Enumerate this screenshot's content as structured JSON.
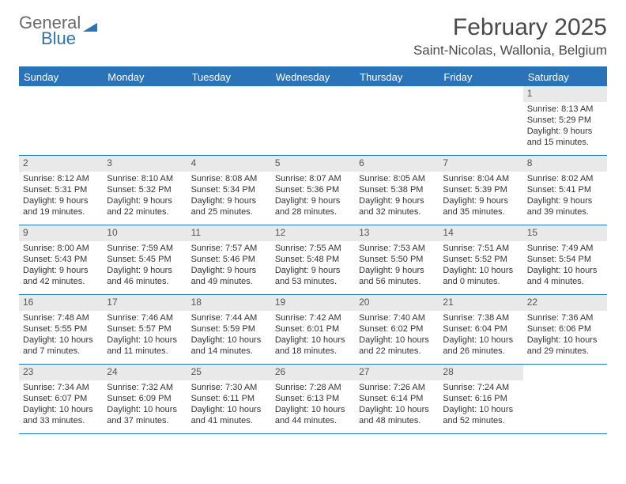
{
  "logo": {
    "word1": "General",
    "word2": "Blue"
  },
  "title": "February 2025",
  "location": "Saint-Nicolas, Wallonia, Belgium",
  "colors": {
    "accent": "#2a73b8",
    "header_bg": "#2a73b8",
    "header_text": "#ffffff",
    "daynum_bg": "#e9e9e9",
    "text": "#333333",
    "logo_gray": "#6b6b6b"
  },
  "day_headers": [
    "Sunday",
    "Monday",
    "Tuesday",
    "Wednesday",
    "Thursday",
    "Friday",
    "Saturday"
  ],
  "weeks": [
    [
      null,
      null,
      null,
      null,
      null,
      null,
      {
        "n": "1",
        "sr": "8:13 AM",
        "ss": "5:29 PM",
        "dl": "9 hours and 15 minutes."
      }
    ],
    [
      {
        "n": "2",
        "sr": "8:12 AM",
        "ss": "5:31 PM",
        "dl": "9 hours and 19 minutes."
      },
      {
        "n": "3",
        "sr": "8:10 AM",
        "ss": "5:32 PM",
        "dl": "9 hours and 22 minutes."
      },
      {
        "n": "4",
        "sr": "8:08 AM",
        "ss": "5:34 PM",
        "dl": "9 hours and 25 minutes."
      },
      {
        "n": "5",
        "sr": "8:07 AM",
        "ss": "5:36 PM",
        "dl": "9 hours and 28 minutes."
      },
      {
        "n": "6",
        "sr": "8:05 AM",
        "ss": "5:38 PM",
        "dl": "9 hours and 32 minutes."
      },
      {
        "n": "7",
        "sr": "8:04 AM",
        "ss": "5:39 PM",
        "dl": "9 hours and 35 minutes."
      },
      {
        "n": "8",
        "sr": "8:02 AM",
        "ss": "5:41 PM",
        "dl": "9 hours and 39 minutes."
      }
    ],
    [
      {
        "n": "9",
        "sr": "8:00 AM",
        "ss": "5:43 PM",
        "dl": "9 hours and 42 minutes."
      },
      {
        "n": "10",
        "sr": "7:59 AM",
        "ss": "5:45 PM",
        "dl": "9 hours and 46 minutes."
      },
      {
        "n": "11",
        "sr": "7:57 AM",
        "ss": "5:46 PM",
        "dl": "9 hours and 49 minutes."
      },
      {
        "n": "12",
        "sr": "7:55 AM",
        "ss": "5:48 PM",
        "dl": "9 hours and 53 minutes."
      },
      {
        "n": "13",
        "sr": "7:53 AM",
        "ss": "5:50 PM",
        "dl": "9 hours and 56 minutes."
      },
      {
        "n": "14",
        "sr": "7:51 AM",
        "ss": "5:52 PM",
        "dl": "10 hours and 0 minutes."
      },
      {
        "n": "15",
        "sr": "7:49 AM",
        "ss": "5:54 PM",
        "dl": "10 hours and 4 minutes."
      }
    ],
    [
      {
        "n": "16",
        "sr": "7:48 AM",
        "ss": "5:55 PM",
        "dl": "10 hours and 7 minutes."
      },
      {
        "n": "17",
        "sr": "7:46 AM",
        "ss": "5:57 PM",
        "dl": "10 hours and 11 minutes."
      },
      {
        "n": "18",
        "sr": "7:44 AM",
        "ss": "5:59 PM",
        "dl": "10 hours and 14 minutes."
      },
      {
        "n": "19",
        "sr": "7:42 AM",
        "ss": "6:01 PM",
        "dl": "10 hours and 18 minutes."
      },
      {
        "n": "20",
        "sr": "7:40 AM",
        "ss": "6:02 PM",
        "dl": "10 hours and 22 minutes."
      },
      {
        "n": "21",
        "sr": "7:38 AM",
        "ss": "6:04 PM",
        "dl": "10 hours and 26 minutes."
      },
      {
        "n": "22",
        "sr": "7:36 AM",
        "ss": "6:06 PM",
        "dl": "10 hours and 29 minutes."
      }
    ],
    [
      {
        "n": "23",
        "sr": "7:34 AM",
        "ss": "6:07 PM",
        "dl": "10 hours and 33 minutes."
      },
      {
        "n": "24",
        "sr": "7:32 AM",
        "ss": "6:09 PM",
        "dl": "10 hours and 37 minutes."
      },
      {
        "n": "25",
        "sr": "7:30 AM",
        "ss": "6:11 PM",
        "dl": "10 hours and 41 minutes."
      },
      {
        "n": "26",
        "sr": "7:28 AM",
        "ss": "6:13 PM",
        "dl": "10 hours and 44 minutes."
      },
      {
        "n": "27",
        "sr": "7:26 AM",
        "ss": "6:14 PM",
        "dl": "10 hours and 48 minutes."
      },
      {
        "n": "28",
        "sr": "7:24 AM",
        "ss": "6:16 PM",
        "dl": "10 hours and 52 minutes."
      },
      null
    ]
  ],
  "labels": {
    "sunrise": "Sunrise:",
    "sunset": "Sunset:",
    "daylight": "Daylight:"
  }
}
